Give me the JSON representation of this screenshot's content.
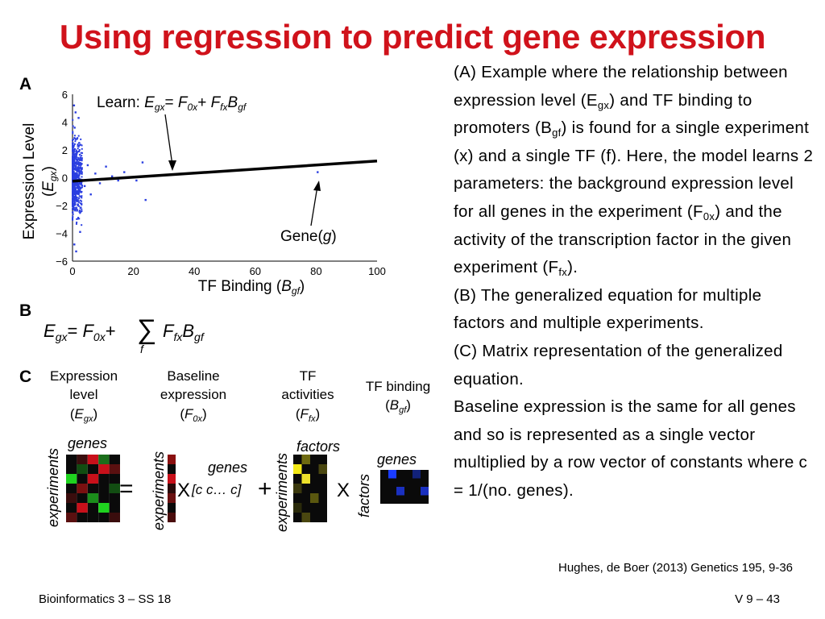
{
  "slide": {
    "title": "Using regression to predict gene expression",
    "citation": "Hughes, de Boer (2013) Genetics 195, 9-36",
    "footer_left": "Bioinformatics 3 – SS 18",
    "footer_right": "V 9  – 43"
  },
  "description": {
    "a_1": "(A) Example where the relationship between expression level (E",
    "a_sub_gx": "gx",
    "a_2": ") and TF binding to promoters (B",
    "a_sub_gf": "gf",
    "a_3": ") is found for a single experiment (x) and a single TF (f). Here, the model learns 2 parameters: the background expression level for all genes in the experiment (F",
    "a_sub_0x": "0x",
    "a_4": ") and the activity of the transcription factor in the given experiment (F",
    "a_sub_fx": "fx",
    "a_5": ").",
    "b": "(B) The generalized equation for multiple factors and multiple experiments.",
    "c": "(C) Matrix representation of the generalized equation.",
    "d": "Baseline expression is the same for all genes and so is represented as a single vector multiplied by a row vector of constants where c = 1/(no. genes)."
  },
  "figure": {
    "panel_a_letter": "A",
    "panel_b_letter": "B",
    "panel_c_letter": "C",
    "learn_label": "Learn:",
    "gene_label": "Gene(g)",
    "times": "X",
    "equals": "=",
    "plus": "+",
    "c_vector": "[c c ... c]",
    "matrix_labels": {
      "expression": [
        "Expression",
        "level",
        "(Egx)"
      ],
      "baseline": [
        "Baseline",
        "expression",
        "(F0x)"
      ],
      "tf_activities": [
        "TF",
        "activities",
        "(Ffx)"
      ],
      "tf_binding": [
        "TF binding",
        "(Bgf)"
      ],
      "genes": "genes",
      "experiments": "experiments",
      "factors": "factors"
    },
    "colors": {
      "title_red": "#d0121b",
      "points_blue": "#2a3ee0",
      "heat_red": "#c8101a",
      "heat_green": "#1fd31f",
      "heat_yellow": "#f2e816",
      "heat_blue": "#1a3cff"
    }
  },
  "chart_data": {
    "type": "scatter",
    "xlabel": "TF Binding (Bgf)",
    "ylabel": "Expression Level (Egx)",
    "xlim": [
      0,
      100
    ],
    "ylim": [
      -6,
      6
    ],
    "x_ticks": [
      0,
      20,
      40,
      60,
      80,
      100
    ],
    "y_ticks": [
      -6,
      -4,
      -2,
      0,
      2,
      4,
      6
    ],
    "series": [
      {
        "kind": "points",
        "note_cluster": "dense cluster of genes at x≈0-3 spanning y≈-5.5 to 5.5",
        "points": [
          [
            0.5,
            5.2
          ],
          [
            1,
            4.7
          ],
          [
            2,
            4.3
          ],
          [
            0.7,
            3.6
          ],
          [
            1.5,
            2.8
          ],
          [
            2.2,
            2.5
          ],
          [
            0.6,
            -4.8
          ],
          [
            1.2,
            -5.3
          ],
          [
            2.5,
            -3.9
          ],
          [
            3,
            1.3
          ],
          [
            4,
            -0.6
          ],
          [
            5,
            0.9
          ],
          [
            6,
            -1.2
          ],
          [
            7.5,
            0.3
          ],
          [
            9,
            -0.4
          ],
          [
            11,
            0.8
          ],
          [
            13,
            0.1
          ],
          [
            15,
            -0.2
          ],
          [
            17,
            0.4
          ],
          [
            21,
            -0.2
          ],
          [
            23,
            1.1
          ],
          [
            24,
            -1.6
          ],
          [
            80.5,
            0.4
          ]
        ]
      },
      {
        "kind": "line",
        "x": [
          0,
          100
        ],
        "y": [
          -0.25,
          1.2
        ]
      }
    ]
  }
}
